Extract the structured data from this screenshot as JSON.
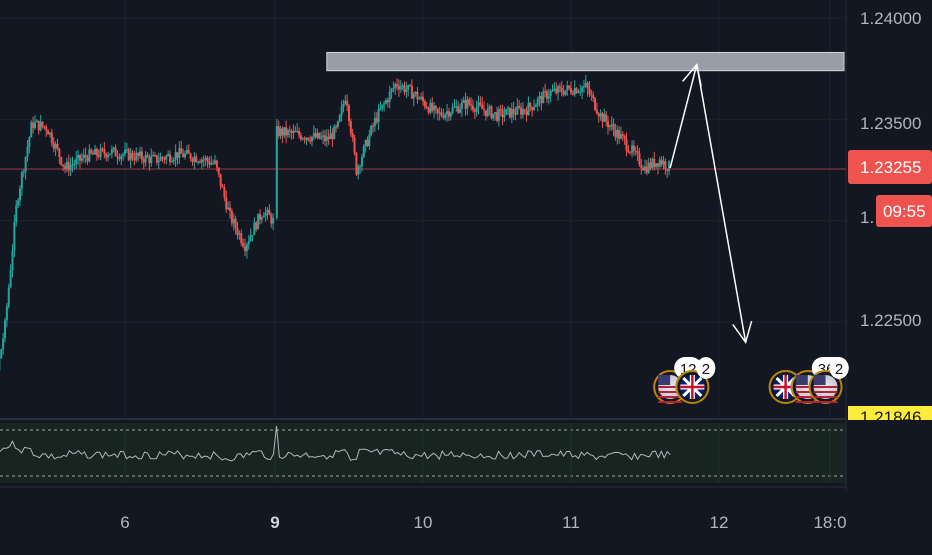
{
  "chart_data": {
    "type": "candlestick",
    "price_axis": {
      "ticks": [
        "1.24000",
        "1.23500",
        "1.22500"
      ],
      "ylim": [
        1.2175,
        1.2408
      ],
      "partial_tick": "1.",
      "partial_tick_value": 1.23,
      "cut_off_label": "1.21846",
      "cut_off_value": 1.21846
    },
    "time_axis": {
      "labels": [
        {
          "text": "6",
          "day": 6,
          "bold": false
        },
        {
          "text": "9",
          "day": 9,
          "bold": true
        },
        {
          "text": "10",
          "day": 10,
          "bold": false
        },
        {
          "text": "11",
          "day": 11,
          "bold": false
        },
        {
          "text": "12",
          "day": 12,
          "bold": false
        },
        {
          "text": "18:0",
          "day": 12.75,
          "bold": false
        }
      ]
    },
    "current_price": {
      "value": 1.23255,
      "label": "1.23255",
      "countdown": "09:55",
      "color": "#ef5350"
    },
    "resistance_zone": {
      "low": 1.2374,
      "high": 1.2383,
      "color": "#b2b5be"
    },
    "projection": [
      {
        "day": 11.67,
        "price": 1.2326
      },
      {
        "day": 11.85,
        "price": 1.2377
      },
      {
        "day": 12.18,
        "price": 1.224
      }
    ],
    "price_path": [
      [
        4.95,
        1.2241
      ],
      [
        5.05,
        1.2238
      ],
      [
        5.12,
        1.2212
      ],
      [
        5.2,
        1.2248
      ],
      [
        5.28,
        1.231
      ],
      [
        5.38,
        1.2348
      ],
      [
        5.48,
        1.2346
      ],
      [
        5.6,
        1.2326
      ],
      [
        5.75,
        1.2332
      ],
      [
        5.9,
        1.2334
      ],
      [
        6.05,
        1.2332
      ],
      [
        6.2,
        1.233
      ],
      [
        6.35,
        1.2333
      ],
      [
        6.5,
        1.2331
      ],
      [
        6.6,
        1.2328
      ],
      [
        6.7,
        1.2302
      ],
      [
        6.8,
        1.2288
      ],
      [
        6.92,
        1.2305
      ],
      [
        7.05,
        1.2295
      ],
      [
        7.2,
        1.2294
      ],
      [
        7.4,
        1.2282
      ],
      [
        7.55,
        1.2272
      ],
      [
        7.7,
        1.2284
      ],
      [
        7.85,
        1.2288
      ],
      [
        7.95,
        1.2278
      ],
      [
        8.1,
        1.2264
      ],
      [
        8.18,
        1.2236
      ],
      [
        8.25,
        1.2262
      ],
      [
        8.35,
        1.2305
      ],
      [
        8.42,
        1.2358
      ],
      [
        8.5,
        1.2369
      ],
      [
        8.65,
        1.236
      ],
      [
        8.8,
        1.2348
      ],
      [
        9.0,
        1.2344
      ],
      [
        9.2,
        1.2342
      ],
      [
        9.35,
        1.234
      ],
      [
        9.42,
        1.2345
      ],
      [
        9.48,
        1.2363
      ],
      [
        9.55,
        1.2325
      ],
      [
        9.68,
        1.235
      ],
      [
        9.82,
        1.2368
      ],
      [
        9.95,
        1.2362
      ],
      [
        10.1,
        1.2352
      ],
      [
        10.3,
        1.2358
      ],
      [
        10.5,
        1.2352
      ],
      [
        10.7,
        1.2355
      ],
      [
        10.85,
        1.2363
      ],
      [
        11.0,
        1.2365
      ],
      [
        11.1,
        1.2366
      ],
      [
        11.2,
        1.2352
      ],
      [
        11.35,
        1.234
      ],
      [
        11.5,
        1.2326
      ],
      [
        11.6,
        1.233
      ],
      [
        11.67,
        1.2326
      ]
    ],
    "up_color": "#26a69a",
    "down_color": "#ef5350",
    "oscillator": {
      "label": "",
      "color": "#b2b5be"
    },
    "events": [
      {
        "day": 11.67,
        "flag": "us",
        "count": "12"
      },
      {
        "day": 11.82,
        "flag": "uk",
        "count": "2"
      },
      {
        "day": 12.45,
        "flag": "uk",
        "count": ""
      },
      {
        "day": 12.6,
        "flag": "us",
        "count": "362"
      },
      {
        "day": 12.72,
        "flag": "us",
        "count": "2"
      }
    ],
    "grid": true
  }
}
